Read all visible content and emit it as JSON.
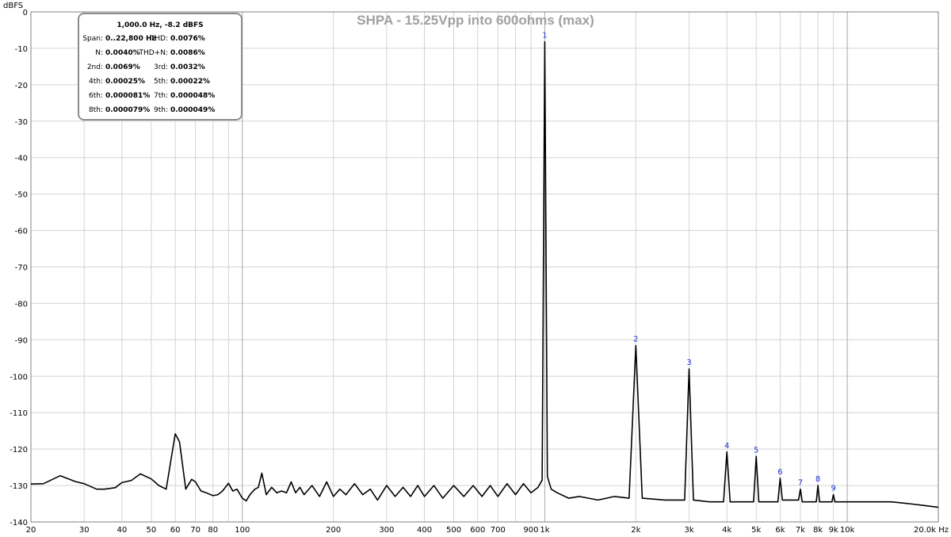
{
  "chart_data": {
    "type": "line",
    "title": "SHPA - 15.25Vpp into 600ohms (max)",
    "ylabel": "dBFS",
    "xlabel": "",
    "x_scale": "log",
    "xlim": [
      20,
      20000
    ],
    "ylim": [
      -140,
      0
    ],
    "grid": true,
    "y_ticks": [
      0,
      -10,
      -20,
      -30,
      -40,
      -50,
      -60,
      -70,
      -80,
      -90,
      -100,
      -110,
      -120,
      -130,
      -140
    ],
    "x_ticks": [
      {
        "v": 20,
        "label": "20"
      },
      {
        "v": 30,
        "label": "30"
      },
      {
        "v": 40,
        "label": "40"
      },
      {
        "v": 50,
        "label": "50"
      },
      {
        "v": 60,
        "label": "60"
      },
      {
        "v": 70,
        "label": "70"
      },
      {
        "v": 80,
        "label": "80"
      },
      {
        "v": 100,
        "label": "100"
      },
      {
        "v": 200,
        "label": "200"
      },
      {
        "v": 300,
        "label": "300"
      },
      {
        "v": 400,
        "label": "400"
      },
      {
        "v": 500,
        "label": "500"
      },
      {
        "v": 600,
        "label": "600"
      },
      {
        "v": 700,
        "label": "700"
      },
      {
        "v": 900,
        "label": "900"
      },
      {
        "v": 1000,
        "label": "1k"
      },
      {
        "v": 2000,
        "label": "2k"
      },
      {
        "v": 3000,
        "label": "3k"
      },
      {
        "v": 4000,
        "label": "4k"
      },
      {
        "v": 5000,
        "label": "5k"
      },
      {
        "v": 6000,
        "label": "6k"
      },
      {
        "v": 7000,
        "label": "7k"
      },
      {
        "v": 8000,
        "label": "8k"
      },
      {
        "v": 9000,
        "label": "9k"
      },
      {
        "v": 10000,
        "label": "10k"
      },
      {
        "v": 20000,
        "label": "20.0k Hz"
      }
    ],
    "series": [
      {
        "x": [
          20,
          22,
          25,
          28,
          30,
          33,
          35,
          38,
          40,
          43,
          46,
          50,
          53,
          56,
          60,
          62,
          65,
          68,
          70,
          73,
          76,
          80,
          83,
          86,
          90,
          93,
          96,
          100,
          103,
          106,
          110,
          113,
          116,
          120,
          125,
          130,
          135,
          140,
          145,
          150,
          155,
          160,
          170,
          180,
          190,
          200,
          210,
          220,
          235,
          250,
          265,
          280,
          300,
          320,
          340,
          360,
          380,
          400,
          430,
          460,
          500,
          540,
          580,
          620,
          660,
          700,
          750,
          800,
          850,
          900,
          950,
          980,
          1000,
          1020,
          1050,
          1100,
          1200,
          1300,
          1500,
          1700,
          1900,
          2000,
          2100,
          2500,
          2900,
          3000,
          3100,
          3500,
          3900,
          4000,
          4100,
          4500,
          4900,
          5000,
          5100,
          5500,
          5900,
          6000,
          6100,
          6500,
          6900,
          7000,
          7100,
          7500,
          7900,
          8000,
          8100,
          8500,
          8900,
          9000,
          9100,
          10000,
          12000,
          14000,
          16000,
          18000,
          20000
        ],
        "y": [
          -129.6,
          -129.5,
          -127.3,
          -128.9,
          -129.5,
          -131.0,
          -131.0,
          -130.6,
          -129.2,
          -128.6,
          -126.8,
          -128.2,
          -130.0,
          -131.0,
          -115.8,
          -118.0,
          -131.0,
          -128.3,
          -129.0,
          -131.5,
          -132.0,
          -132.8,
          -132.5,
          -131.5,
          -129.4,
          -131.5,
          -131.0,
          -133.5,
          -134.2,
          -132.5,
          -131.0,
          -130.5,
          -126.6,
          -132.5,
          -130.5,
          -132.0,
          -131.5,
          -132.0,
          -129.0,
          -132.0,
          -130.5,
          -132.5,
          -130.0,
          -133.0,
          -129.0,
          -133.0,
          -131.0,
          -132.5,
          -129.5,
          -132.5,
          -131.0,
          -134.0,
          -130.0,
          -133.0,
          -130.5,
          -133.0,
          -130.0,
          -133.0,
          -130.0,
          -133.5,
          -130.0,
          -133.0,
          -130.0,
          -133.0,
          -130.0,
          -133.0,
          -129.5,
          -132.5,
          -129.5,
          -132.0,
          -130.5,
          -128.5,
          -8.2,
          -127.5,
          -131.0,
          -132.0,
          -133.5,
          -133.0,
          -134.0,
          -133.0,
          -133.5,
          -91.6,
          -133.5,
          -134.0,
          -134.0,
          -98.0,
          -134.0,
          -134.5,
          -134.5,
          -120.8,
          -134.5,
          -134.5,
          -134.5,
          -122.0,
          -134.5,
          -134.5,
          -134.5,
          -128.0,
          -134.0,
          -134.0,
          -134.0,
          -131.0,
          -134.5,
          -134.5,
          -134.5,
          -130.0,
          -134.5,
          -134.5,
          -134.5,
          -132.5,
          -134.5,
          -134.5,
          -134.5,
          -134.5,
          -135.0,
          -135.5,
          -136.0
        ]
      }
    ],
    "harmonic_markers": [
      {
        "label": "1",
        "x": 1000,
        "y": -8.2
      },
      {
        "label": "2",
        "x": 2000,
        "y": -91.6
      },
      {
        "label": "3",
        "x": 3000,
        "y": -98.0
      },
      {
        "label": "4",
        "x": 4000,
        "y": -120.8
      },
      {
        "label": "5",
        "x": 5000,
        "y": -122.0
      },
      {
        "label": "6",
        "x": 6000,
        "y": -128.0
      },
      {
        "label": "7",
        "x": 7000,
        "y": -131.0
      },
      {
        "label": "8",
        "x": 8000,
        "y": -130.0
      },
      {
        "label": "9",
        "x": 9000,
        "y": -132.5
      }
    ],
    "stats_box": {
      "header": "1,000.0 Hz, -8.2 dBFS",
      "rows": [
        [
          {
            "k": "Span:",
            "v": "0..22,800 Hz"
          },
          {
            "k": "THD:",
            "v": "0.0076%"
          }
        ],
        [
          {
            "k": "N:",
            "v": "0.0040%"
          },
          {
            "k": "THD+N:",
            "v": "0.0086%"
          }
        ],
        [
          {
            "k": "2nd:",
            "v": "0.0069%"
          },
          {
            "k": "3rd:",
            "v": "0.0032%"
          }
        ],
        [
          {
            "k": "4th:",
            "v": "0.00025%"
          },
          {
            "k": "5th:",
            "v": "0.00022%"
          }
        ],
        [
          {
            "k": "6th:",
            "v": "0.000081%"
          },
          {
            "k": "7th:",
            "v": "0.000048%"
          }
        ],
        [
          {
            "k": "8th:",
            "v": "0.000079%"
          },
          {
            "k": "9th:",
            "v": "0.000049%"
          }
        ]
      ]
    }
  }
}
